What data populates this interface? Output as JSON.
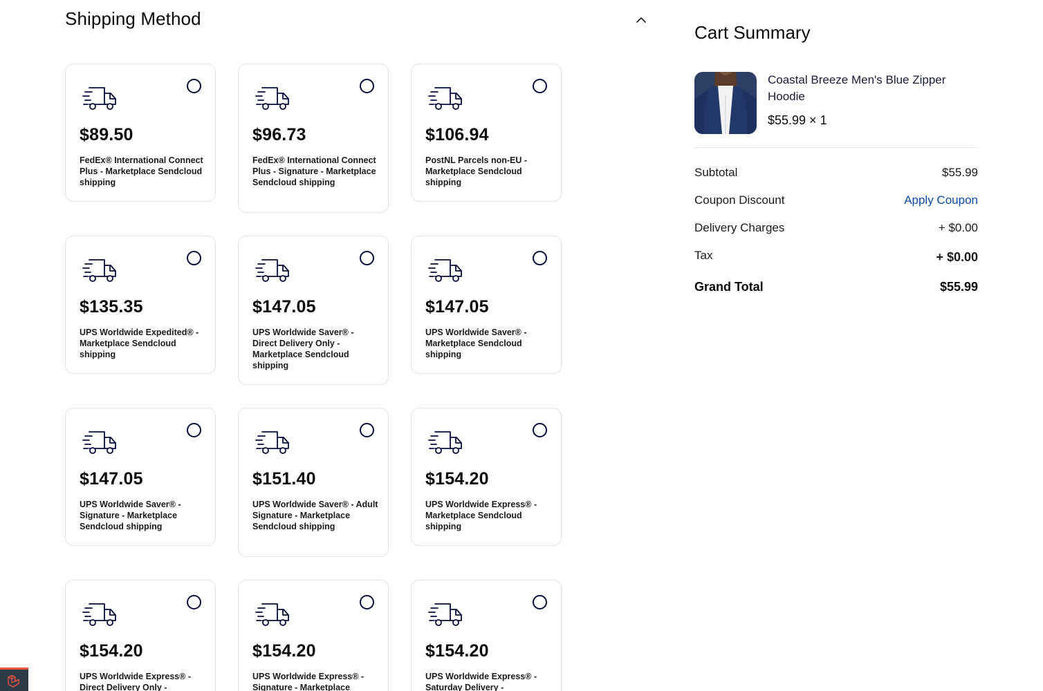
{
  "shipping": {
    "title": "Shipping Method",
    "options": [
      {
        "price": "$89.50",
        "name": "FedEx® International Connect Plus - Marketplace Sendcloud shipping"
      },
      {
        "price": "$96.73",
        "name": "FedEx® International Connect Plus - Signature - Marketplace Sendcloud shipping"
      },
      {
        "price": "$106.94",
        "name": "PostNL Parcels non-EU - Marketplace Sendcloud shipping"
      },
      {
        "price": "$135.35",
        "name": "UPS Worldwide Expedited® - Marketplace Sendcloud shipping"
      },
      {
        "price": "$147.05",
        "name": "UPS Worldwide Saver® - Direct Delivery Only - Marketplace Sendcloud shipping"
      },
      {
        "price": "$147.05",
        "name": "UPS Worldwide Saver® - Marketplace Sendcloud shipping"
      },
      {
        "price": "$147.05",
        "name": "UPS Worldwide Saver® - Signature - Marketplace Sendcloud shipping"
      },
      {
        "price": "$151.40",
        "name": "UPS Worldwide Saver® - Adult Signature - Marketplace Sendcloud shipping"
      },
      {
        "price": "$154.20",
        "name": "UPS Worldwide Express® - Marketplace Sendcloud shipping"
      },
      {
        "price": "$154.20",
        "name": "UPS Worldwide Express® - Direct Delivery Only -"
      },
      {
        "price": "$154.20",
        "name": "UPS Worldwide Express® - Signature - Marketplace"
      },
      {
        "price": "$154.20",
        "name": "UPS Worldwide Express® - Saturday Delivery -"
      }
    ]
  },
  "summary": {
    "title": "Cart Summary",
    "product": {
      "name": "Coastal Breeze Men's Blue Zipper Hoodie",
      "price_qty": "$55.99 × 1"
    },
    "subtotal_label": "Subtotal",
    "subtotal_value": "$55.99",
    "coupon_label": "Coupon Discount",
    "coupon_action": "Apply Coupon",
    "delivery_label": "Delivery Charges",
    "delivery_value": "+ $0.00",
    "tax_label": "Tax",
    "tax_value": "+ $0.00",
    "grand_total_label": "Grand Total",
    "grand_total_value": "$55.99"
  },
  "colors": {
    "accent_link": "#0a49a8",
    "ink": "#060c3b",
    "card_border": "#e2e2e8"
  }
}
